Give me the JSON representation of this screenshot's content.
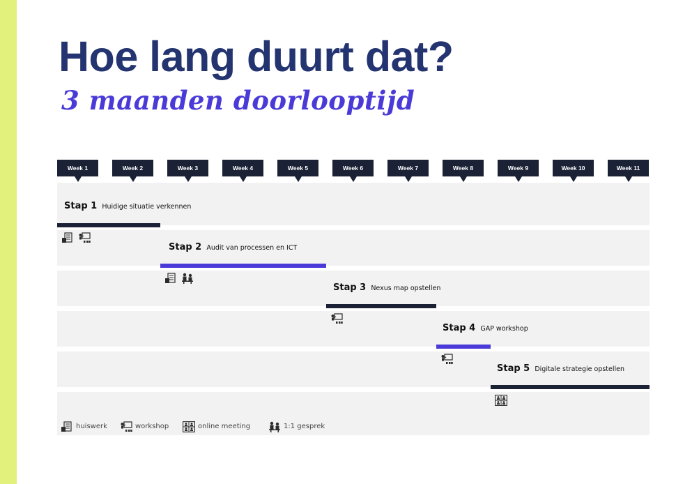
{
  "title": "Hoe lang duurt dat?",
  "subtitle": "3 maanden doorlooptijd",
  "colors": {
    "stripe": "#e2f07c",
    "title": "#243470",
    "accent": "#4a3bd8",
    "dark": "#1b2236"
  },
  "weeks": [
    "Week 1",
    "Week 2",
    "Week 3",
    "Week 4",
    "Week 5",
    "Week 6",
    "Week 7",
    "Week 8",
    "Week 9",
    "Week 10",
    "Week 11"
  ],
  "steps": [
    {
      "number": "Stap 1",
      "description": "Huidige situatie verkennen",
      "color": "#1b2236",
      "icons": [
        "homework-icon",
        "workshop-icon"
      ]
    },
    {
      "number": "Stap 2",
      "description": "Audit van processen en ICT",
      "color": "#4a3bd8",
      "icons": [
        "homework-icon",
        "one-on-one-icon"
      ]
    },
    {
      "number": "Stap 3",
      "description": "Nexus map opstellen",
      "color": "#1b2236",
      "icons": [
        "workshop-icon"
      ]
    },
    {
      "number": "Stap 4",
      "description": "GAP workshop",
      "color": "#4a3bd8",
      "icons": [
        "workshop-icon"
      ]
    },
    {
      "number": "Stap 5",
      "description": "Digitale strategie opstellen",
      "color": "#1b2236",
      "icons": [
        "online-meeting-icon"
      ]
    }
  ],
  "legend": [
    {
      "icon": "homework-icon",
      "label": "huiswerk"
    },
    {
      "icon": "workshop-icon",
      "label": "workshop"
    },
    {
      "icon": "online-meeting-icon",
      "label": "online meeting"
    },
    {
      "icon": "one-on-one-icon",
      "label": "1:1 gesprek"
    }
  ]
}
